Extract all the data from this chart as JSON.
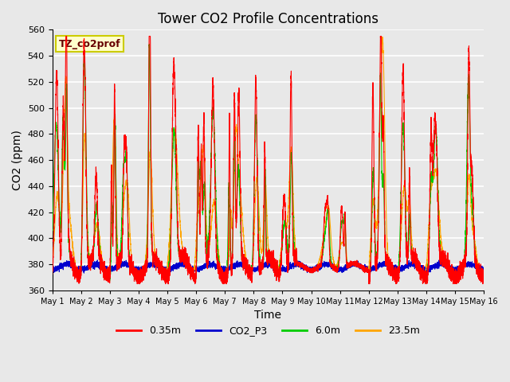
{
  "title": "Tower CO2 Profile Concentrations",
  "xlabel": "Time",
  "ylabel": "CO2 (ppm)",
  "ylim": [
    360,
    560
  ],
  "yticks": [
    360,
    380,
    400,
    420,
    440,
    460,
    480,
    500,
    520,
    540,
    560
  ],
  "legend_label": "TZ_co2prof",
  "series_labels": [
    "0.35m",
    "CO2_P3",
    "6.0m",
    "23.5m"
  ],
  "series_colors": [
    "#ff0000",
    "#0000cd",
    "#00cc00",
    "#ffa500"
  ],
  "series_linewidths": [
    0.8,
    0.8,
    0.8,
    0.8
  ],
  "background_color": "#e8e8e8",
  "plot_bg_color": "#e8e8e8",
  "grid_color": "#ffffff",
  "title_fontsize": 12,
  "axis_label_fontsize": 10,
  "tick_fontsize": 8,
  "annotation_box_color": "#ffffcc",
  "annotation_box_edgecolor": "#cccc00",
  "n_points": 7200,
  "n_days": 15
}
